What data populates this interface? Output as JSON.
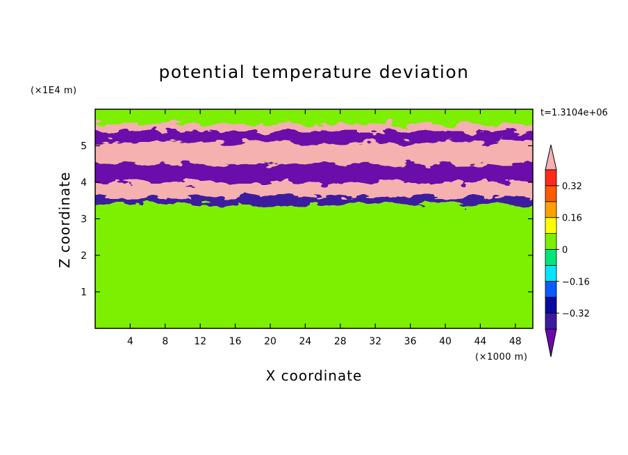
{
  "chart_data": {
    "type": "heatmap",
    "title": "potential temperature deviation",
    "xlabel": "X coordinate",
    "ylabel": "Z coordinate",
    "x_unit": "(×1000 m)",
    "y_unit": "(×1E4 m)",
    "annotation": "t=1.3104e+06",
    "xlim": [
      0,
      50
    ],
    "ylim": [
      0,
      6
    ],
    "x_ticks": [
      4,
      8,
      12,
      16,
      20,
      24,
      28,
      32,
      36,
      40,
      44,
      48
    ],
    "x_tick_labels": [
      "4",
      "8",
      "12",
      "16",
      "20",
      "24",
      "28",
      "32",
      "36",
      "40",
      "44",
      "48"
    ],
    "y_ticks": [
      1,
      2,
      3,
      4,
      5
    ],
    "y_tick_labels": [
      "1",
      "2",
      "3",
      "4",
      "5"
    ],
    "colorbar": {
      "levels": [
        -0.4,
        -0.32,
        -0.24,
        -0.16,
        -0.08,
        0,
        0.08,
        0.16,
        0.24,
        0.32,
        0.4
      ],
      "tick_values": [
        -0.32,
        -0.16,
        0,
        0.16,
        0.32
      ],
      "tick_labels": [
        "−0.32",
        "−0.16",
        "0",
        "0.16",
        "0.32"
      ],
      "colors_low_to_high": [
        "#3c1aa0",
        "#0a0aa0",
        "#0a5aff",
        "#00e6ff",
        "#00e678",
        "#7cf000",
        "#ffff00",
        "#ffa000",
        "#ff5a00",
        "#ff2a1a"
      ],
      "under_color": "#6a0aaa",
      "over_color": "#f5b0b0",
      "extend": "both"
    },
    "bands": [
      {
        "z_range": [
          0,
          0.6
        ],
        "value": 0.02
      },
      {
        "z_range": [
          0.6,
          3.4
        ],
        "value": 0.03
      },
      {
        "z_range": [
          3.4,
          3.6
        ],
        "value": -0.4
      },
      {
        "z_range": [
          3.6,
          4.0
        ],
        "value": 0.45
      },
      {
        "z_range": [
          4.0,
          4.5
        ],
        "value": -0.45
      },
      {
        "z_range": [
          4.5,
          5.1
        ],
        "value": 0.45
      },
      {
        "z_range": [
          5.1,
          5.4
        ],
        "value": -0.45
      },
      {
        "z_range": [
          5.4,
          5.6
        ],
        "value": 0.45
      },
      {
        "z_range": [
          5.6,
          6.0
        ],
        "value": 0.04
      }
    ]
  }
}
